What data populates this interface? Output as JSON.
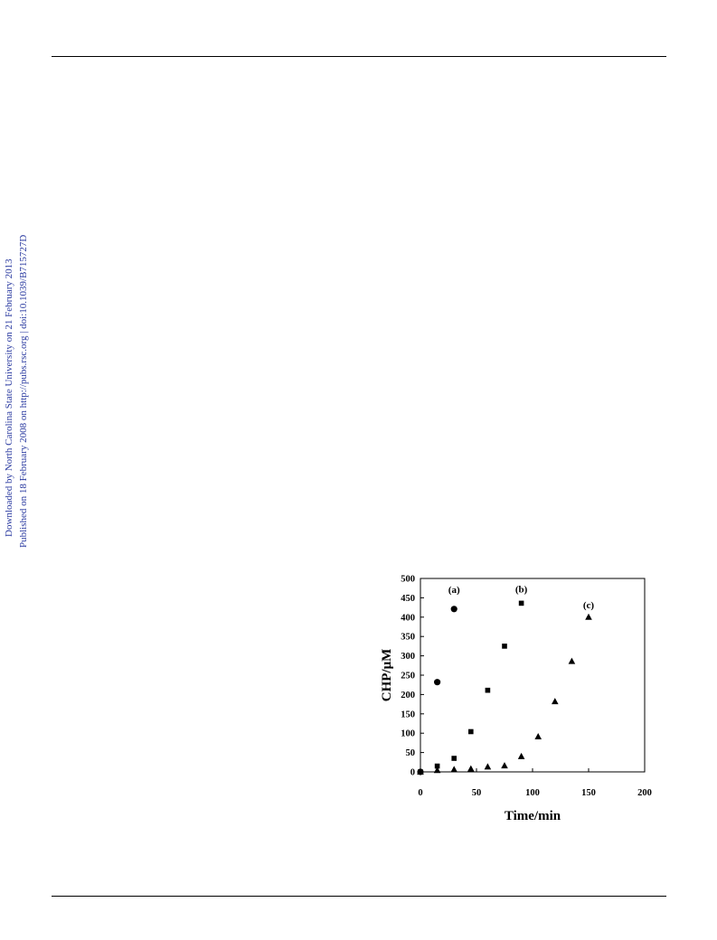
{
  "sidebar": {
    "downloaded": "Downloaded by North Carolina State University on 21 February 2013",
    "published": "Published on 18 February 2008 on http://pubs.rsc.org | doi:10.1039/B715727D"
  },
  "chart_data": {
    "type": "scatter",
    "xlabel": "Time/min",
    "ylabel": "CHP/μM",
    "xlim": [
      0,
      200
    ],
    "ylim": [
      0,
      500
    ],
    "xticks": [
      0,
      50,
      100,
      150,
      200
    ],
    "yticks": [
      0,
      50,
      100,
      150,
      200,
      250,
      300,
      350,
      400,
      450,
      500
    ],
    "grid": false,
    "series": [
      {
        "name": "(a)",
        "marker": "circle",
        "color": "#000000",
        "x": [
          0,
          15,
          30
        ],
        "y": [
          0,
          232,
          421
        ]
      },
      {
        "name": "(b)",
        "marker": "square",
        "color": "#000000",
        "x": [
          0,
          15,
          30,
          45,
          60,
          75,
          90
        ],
        "y": [
          0,
          15,
          35,
          104,
          211,
          325,
          436
        ]
      },
      {
        "name": "(c)",
        "marker": "triangle",
        "color": "#000000",
        "x": [
          0,
          15,
          30,
          45,
          60,
          75,
          90,
          105,
          120,
          135,
          150
        ],
        "y": [
          0,
          4,
          6,
          8,
          13,
          16,
          40,
          91,
          182,
          286,
          400
        ]
      }
    ]
  }
}
